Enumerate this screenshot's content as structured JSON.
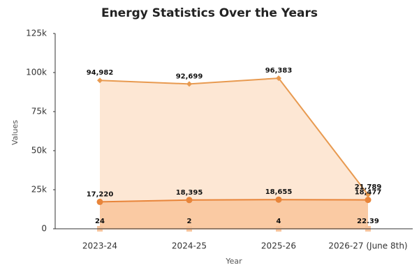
{
  "chart_data": {
    "type": "area",
    "title": "Energy Statistics Over the Years",
    "x_label": "Year",
    "y_label": "Values",
    "categories": [
      "2023-24",
      "2024-25",
      "2025-26",
      "2026-27 (June 8th)"
    ],
    "ylim": [
      0,
      125000
    ],
    "yticks": [
      0,
      {
        "value": 25000,
        "label": "25k"
      },
      {
        "value": 50000,
        "label": "50k"
      },
      {
        "value": 75000,
        "label": "75k"
      },
      {
        "value": 100000,
        "label": "100k"
      },
      {
        "value": 125000,
        "label": "125k"
      }
    ],
    "series": [
      {
        "color": "#e89a50",
        "fill": "#fde3cc",
        "marker": "diamond",
        "values": [
          94982,
          92699,
          96383,
          21789
        ],
        "value_labels": [
          "94,982",
          "92,699",
          "96,383",
          "21,789"
        ]
      },
      {
        "color": "#e8853a",
        "fill": "#f9c49a",
        "marker": "circle",
        "values": [
          17220,
          18395,
          18655,
          18477
        ],
        "value_labels": [
          "17,220",
          "18,395",
          "18,655",
          "18,477"
        ]
      },
      {
        "color": "#f7c49c",
        "fill": "#fbd4b4",
        "marker": "square",
        "values": [
          24,
          2,
          4,
          22.39
        ]
      }
    ]
  }
}
